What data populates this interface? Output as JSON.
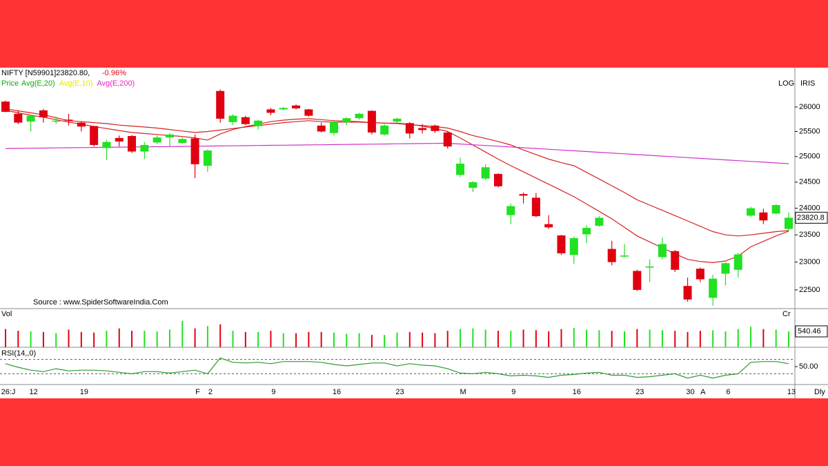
{
  "chart_data": [
    {
      "type": "candlestick",
      "title": "NIFTY [N59901]23820.80,",
      "change": "-0.96%",
      "price_label": "Price",
      "price_color": "#00b000",
      "log_scale": true,
      "scale_label": "LOG",
      "extra_label": "IRIS",
      "annotation": "Source : www.SpiderSoftwareIndia.Com",
      "period_label": "Dly",
      "up_color": "#22e022",
      "down_color": "#e00010",
      "categories": [
        "26:J",
        null,
        "12",
        null,
        null,
        null,
        "19",
        null,
        null,
        null,
        null,
        null,
        null,
        null,
        null,
        "F",
        "2",
        null,
        null,
        null,
        null,
        "9",
        null,
        null,
        null,
        null,
        "16",
        null,
        null,
        null,
        null,
        "23",
        null,
        null,
        null,
        null,
        "M",
        null,
        null,
        null,
        "9",
        null,
        null,
        null,
        null,
        "16",
        null,
        null,
        null,
        null,
        "23",
        null,
        null,
        null,
        "30",
        "A",
        null,
        "6",
        null,
        null,
        null,
        null,
        "13"
      ],
      "open": [
        26110,
        25860,
        25700,
        25930,
        25700,
        25740,
        25680,
        25610,
        25170,
        25370,
        25410,
        25100,
        25280,
        25380,
        25270,
        25360,
        24820,
        26330,
        25690,
        25790,
        25610,
        25950,
        25950,
        26030,
        25950,
        25620,
        25470,
        25690,
        25770,
        25920,
        25440,
        25700,
        25670,
        25570,
        25620,
        25480,
        24640,
        24390,
        24570,
        24660,
        23870,
        24270,
        24200,
        23700,
        23490,
        23130,
        23510,
        23670,
        23240,
        23100,
        22840,
        22900,
        23090,
        23200,
        22570,
        22880,
        22360,
        22790,
        22860,
        23860,
        23920,
        23900,
        23610
      ],
      "high": [
        26130,
        25930,
        25830,
        25960,
        25800,
        25860,
        25700,
        25620,
        25330,
        25420,
        25430,
        25290,
        25420,
        25470,
        25380,
        25440,
        25140,
        26360,
        25850,
        25820,
        25740,
        25980,
        26000,
        26050,
        25960,
        25680,
        25710,
        25790,
        25880,
        25930,
        25650,
        25780,
        25690,
        25650,
        25640,
        25510,
        24980,
        24520,
        24850,
        24670,
        24090,
        24300,
        24290,
        23870,
        23500,
        23470,
        23680,
        23850,
        23390,
        23330,
        22860,
        23050,
        23450,
        23220,
        22720,
        22900,
        22770,
        23000,
        23170,
        24030,
        23990,
        24080,
        23920
      ],
      "low": [
        25890,
        25650,
        25500,
        25680,
        25650,
        25620,
        25500,
        25200,
        24930,
        25200,
        25070,
        24950,
        25250,
        25200,
        25260,
        24580,
        24700,
        25680,
        25630,
        25630,
        25540,
        25830,
        25930,
        25950,
        25800,
        25480,
        25420,
        25630,
        25740,
        25440,
        25420,
        25660,
        25360,
        25460,
        25470,
        25160,
        24600,
        24310,
        24540,
        24400,
        23700,
        24090,
        23830,
        23610,
        23130,
        22970,
        23350,
        23650,
        22940,
        23090,
        22480,
        22640,
        23050,
        22820,
        22290,
        22640,
        22220,
        22580,
        22720,
        23840,
        23700,
        23880,
        23580
      ],
      "close": [
        25900,
        25680,
        25820,
        25790,
        25720,
        25720,
        25600,
        25230,
        25290,
        25300,
        25100,
        25230,
        25380,
        25440,
        25350,
        24850,
        25120,
        25760,
        25820,
        25650,
        25720,
        25880,
        25980,
        25970,
        25820,
        25500,
        25700,
        25770,
        25860,
        25480,
        25620,
        25760,
        25460,
        25530,
        25510,
        25200,
        24860,
        24500,
        24790,
        24420,
        24040,
        24240,
        23850,
        23640,
        23160,
        23440,
        23630,
        23820,
        23000,
        23120,
        22500,
        22920,
        23330,
        22860,
        22330,
        22690,
        22700,
        22980,
        23140,
        24000,
        23770,
        24060,
        23820.8
      ],
      "series": [
        {
          "name": "Avg(E,20)",
          "color": "#00b000",
          "line_color": "#d42020",
          "values": [
            25960,
            25920,
            25880,
            25840,
            25780,
            25720,
            25700,
            25680,
            25660,
            25630,
            25610,
            25590,
            25570,
            25540,
            25510,
            25480,
            25500,
            25530,
            25560,
            25590,
            25620,
            25650,
            25680,
            25700,
            25720,
            25700,
            25690,
            25690,
            25690,
            25680,
            25670,
            25660,
            25640,
            25620,
            25600,
            25570,
            25500,
            25420,
            25360,
            25300,
            25230,
            25130,
            25040,
            24950,
            24880,
            24820,
            24690,
            24560,
            24430,
            24300,
            24160,
            24060,
            23960,
            23860,
            23760,
            23660,
            23560,
            23500,
            23480,
            23500,
            23530,
            23560,
            23580
          ]
        },
        {
          "name": "Avg(E,10)",
          "color": "#e6e600",
          "line_color": "#d42020",
          "values": [
            25930,
            25880,
            25830,
            25790,
            25740,
            25690,
            25650,
            25600,
            25560,
            25520,
            25480,
            25460,
            25440,
            25420,
            25400,
            25370,
            25330,
            25450,
            25540,
            25600,
            25650,
            25700,
            25730,
            25750,
            25760,
            25740,
            25720,
            25710,
            25700,
            25680,
            25670,
            25670,
            25650,
            25610,
            25560,
            25500,
            25370,
            25230,
            25090,
            24950,
            24820,
            24700,
            24580,
            24460,
            24340,
            24220,
            24080,
            23940,
            23800,
            23640,
            23480,
            23370,
            23260,
            23150,
            23050,
            23010,
            22990,
            23020,
            23110,
            23280,
            23380,
            23480,
            23570
          ]
        },
        {
          "name": "Avg(E,200)",
          "color": "#e020c0",
          "line_color": "#d030c8",
          "values": [
            25160,
            25163,
            25166,
            25169,
            25172,
            25175,
            25178,
            25181,
            25184,
            25187,
            25190,
            25193,
            25196,
            25199,
            25202,
            25205,
            25208,
            25211,
            25214,
            25217,
            25220,
            25223,
            25226,
            25229,
            25232,
            25235,
            25238,
            25241,
            25244,
            25247,
            25250,
            25253,
            25256,
            25259,
            25262,
            25265,
            25250,
            25235,
            25220,
            25205,
            25190,
            25175,
            25160,
            25145,
            25130,
            25115,
            25100,
            25085,
            25070,
            25055,
            25040,
            25025,
            25010,
            24995,
            24980,
            24965,
            24950,
            24935,
            24920,
            24905,
            24890,
            24875,
            24860
          ]
        }
      ],
      "ylim": [
        22170,
        26820
      ],
      "yticks": [
        22500,
        23000,
        23500,
        24000,
        24500,
        25000,
        25500,
        26000
      ]
    },
    {
      "type": "bar",
      "title": "Vol",
      "unit": "Cr",
      "values": [
        620,
        560,
        540,
        520,
        480,
        600,
        520,
        500,
        560,
        640,
        560,
        560,
        540,
        600,
        900,
        640,
        720,
        780,
        560,
        520,
        520,
        560,
        480,
        480,
        520,
        520,
        500,
        460,
        480,
        420,
        420,
        500,
        520,
        500,
        480,
        560,
        620,
        640,
        600,
        560,
        560,
        600,
        580,
        540,
        620,
        660,
        600,
        580,
        560,
        540,
        620,
        600,
        580,
        560,
        520,
        560,
        580,
        540,
        620,
        700,
        620,
        600,
        540.46
      ],
      "ylim": [
        0,
        1316
      ],
      "yticks": [
        540.46
      ]
    },
    {
      "type": "line",
      "title": "RSI(14,,0)",
      "color": "#2e9a2e",
      "values": [
        58,
        48,
        40,
        36,
        44,
        38,
        40,
        40,
        38,
        34,
        30,
        36,
        36,
        32,
        36,
        40,
        30,
        74,
        62,
        60,
        62,
        58,
        64,
        64,
        64,
        62,
        56,
        52,
        56,
        60,
        60,
        52,
        58,
        54,
        52,
        44,
        32,
        30,
        34,
        30,
        24,
        26,
        24,
        20,
        26,
        28,
        32,
        34,
        26,
        26,
        20,
        22,
        26,
        30,
        18,
        26,
        18,
        26,
        30,
        62,
        64,
        64,
        58
      ],
      "ylim": [
        0,
        100
      ],
      "yticks": [
        {
          "value": 50,
          "label": "50.00"
        }
      ],
      "reference_lines": [
        70,
        30
      ]
    }
  ]
}
